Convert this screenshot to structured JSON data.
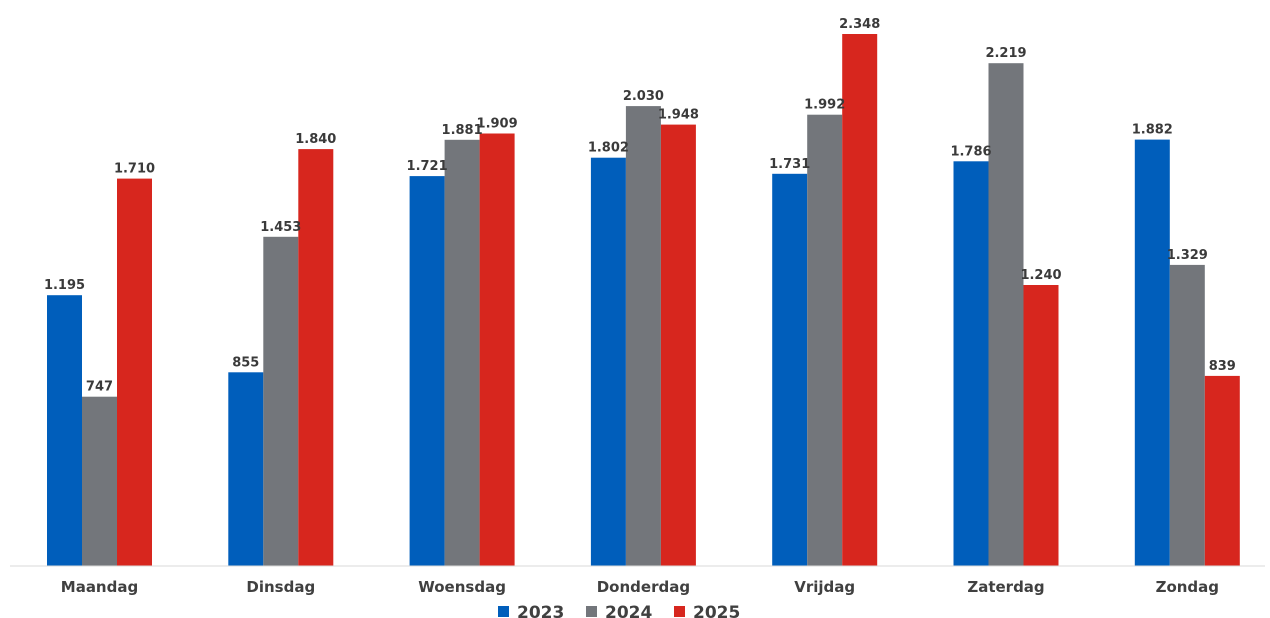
{
  "chart_data": {
    "type": "bar",
    "title": "",
    "xlabel": "",
    "ylabel": "",
    "ylim": [
      0,
      2400
    ],
    "grid": false,
    "legend_position": "bottom",
    "number_format": "dot-thousands",
    "categories": [
      "Maandag",
      "Dinsdag",
      "Woensdag",
      "Donderdag",
      "Vrijdag",
      "Zaterdag",
      "Zondag"
    ],
    "series": [
      {
        "name": "2023",
        "color": "#005ebb",
        "values": [
          1195,
          855,
          1721,
          1802,
          1731,
          1786,
          1882
        ],
        "labels": [
          "1.195",
          "855",
          "1.721",
          "1.802",
          "1.731",
          "1.786",
          "1.882"
        ]
      },
      {
        "name": "2024",
        "color": "#73767b",
        "values": [
          747,
          1453,
          1881,
          2030,
          1992,
          2219,
          1329
        ],
        "labels": [
          "747",
          "1.453",
          "1.881",
          "2.030",
          "1.992",
          "2.219",
          "1.329"
        ]
      },
      {
        "name": "2025",
        "color": "#d7261e",
        "values": [
          1710,
          1840,
          1909,
          1948,
          2348,
          1240,
          839
        ],
        "labels": [
          "1.710",
          "1.840",
          "1.909",
          "1.948",
          "2.348",
          "1.240",
          "839"
        ]
      }
    ]
  }
}
